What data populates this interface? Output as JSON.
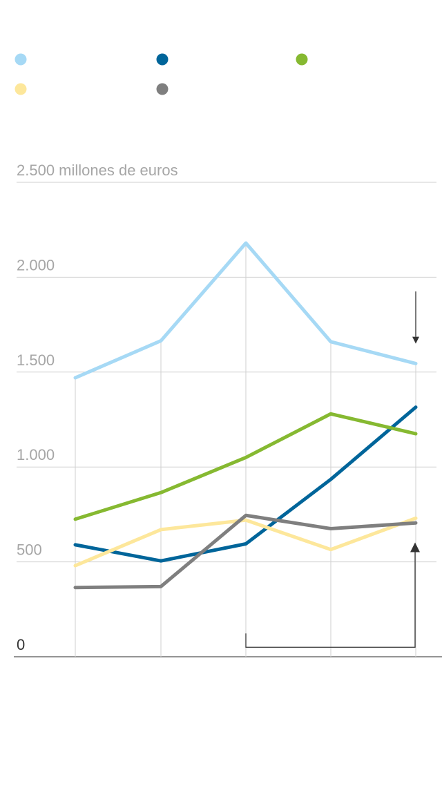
{
  "chart_data": {
    "type": "line",
    "title": "",
    "xlabel": "",
    "ylabel": "",
    "y_unit_label": "2.500 millones de euros",
    "ylim": [
      0,
      2500
    ],
    "yticks": [
      {
        "value": 0,
        "label": "0"
      },
      {
        "value": 500,
        "label": "500"
      },
      {
        "value": 1000,
        "label": "1.000"
      },
      {
        "value": 1500,
        "label": "1.500"
      },
      {
        "value": 2000,
        "label": "2.000"
      },
      {
        "value": 2500,
        "label": "2.500 millones de euros"
      }
    ],
    "x": [
      0,
      1,
      2,
      3,
      4
    ],
    "grid": true,
    "legend_placement": "top",
    "series": [
      {
        "key": "light-blue",
        "color": "#a6d9f5",
        "values": [
          1470,
          1665,
          2180,
          1660,
          1545
        ]
      },
      {
        "key": "dark-blue",
        "color": "#00659a",
        "values": [
          590,
          505,
          595,
          935,
          1315
        ]
      },
      {
        "key": "green",
        "color": "#86b931",
        "values": [
          725,
          865,
          1050,
          1280,
          1175
        ]
      },
      {
        "key": "yellow",
        "color": "#fde79b",
        "values": [
          480,
          670,
          720,
          565,
          730
        ]
      },
      {
        "key": "gray",
        "color": "#7f7f7f",
        "values": [
          365,
          370,
          745,
          675,
          705
        ]
      }
    ],
    "annotations": [
      {
        "type": "arrow-down",
        "x": 4,
        "from": 1925,
        "to": 1650
      },
      {
        "type": "bracket-arrow-up",
        "x_start": 2,
        "x_end": 4,
        "base": 50,
        "to": 595
      }
    ]
  }
}
